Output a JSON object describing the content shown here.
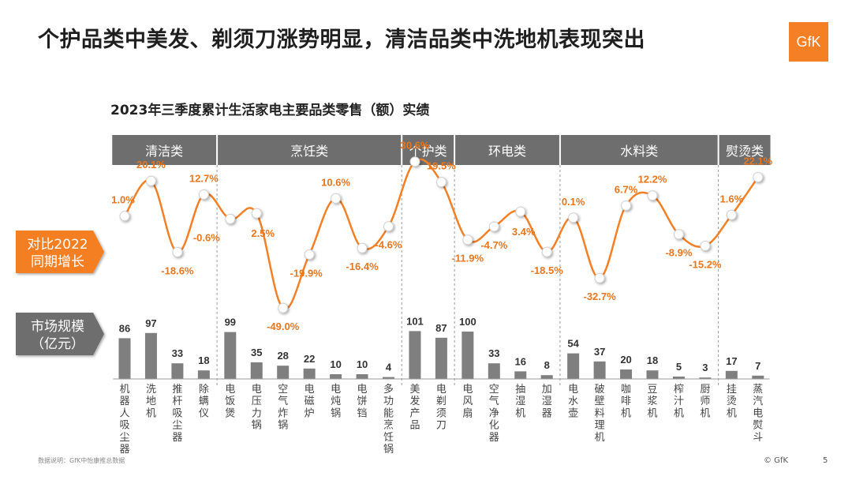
{
  "slide": {
    "headline": "个护品类中美发、剃须刀涨势明显，清洁品类中洗地机表现突出",
    "subtitle": "2023年三季度累计生活家电主要品类零售（额）实绩",
    "logo_text": "GfK",
    "source_note": "数据说明：GfK中怡康推总数据",
    "copyright": "© GfK",
    "page_number": "5"
  },
  "colors": {
    "accent": "#F47F24",
    "band": "#6E6E6E",
    "bar": "#7F7F7F",
    "text_orange": "#E8761E"
  },
  "chart_data": {
    "type": "line+bar",
    "title": "2023年三季度累计生活家电主要品类零售（额）实绩",
    "groups": [
      {
        "name": "清洁类",
        "count": 4
      },
      {
        "name": "烹饪类",
        "count": 7
      },
      {
        "name": "个护类",
        "count": 2
      },
      {
        "name": "环电类",
        "count": 4
      },
      {
        "name": "水料类",
        "count": 6
      },
      {
        "name": "熨烫类",
        "count": 2
      }
    ],
    "categories": [
      "机器人吸尘器",
      "洗地机",
      "推杆吸尘器",
      "除螨仪",
      "电饭煲",
      "电压力锅",
      "空气炸锅",
      "电磁炉",
      "电炖锅",
      "电饼铛",
      "多功能烹饪锅",
      "美发产品",
      "电剃须刀",
      "电风扇",
      "空气净化器",
      "抽湿机",
      "加湿器",
      "电水壶",
      "破壁料理机",
      "咖啡机",
      "豆浆机",
      "榨汁机",
      "厨师机",
      "挂烫机",
      "蒸汽电熨斗"
    ],
    "growth_label": "对比2022\n同期增长",
    "market_label": "市场规模\n（亿元）",
    "growth": [
      1.0,
      20.1,
      -18.6,
      12.7,
      -0.6,
      2.5,
      -49.0,
      -19.9,
      10.6,
      -16.4,
      -4.6,
      30.6,
      19.5,
      -11.9,
      -4.7,
      3.4,
      -18.5,
      0.1,
      -32.7,
      6.7,
      12.2,
      -8.9,
      -15.2,
      1.6,
      22.1
    ],
    "growth_labels": [
      "1.0%",
      "20.1%",
      "-18.6%",
      "12.7%",
      "-0.6%",
      "2.5%",
      "-49.0%",
      "-19.9%",
      "10.6%",
      "-16.4%",
      "-4.6%",
      "30.6%",
      "19.5%",
      "-11.9%",
      "-4.7%",
      "3.4%",
      "-18.5%",
      "0.1%",
      "-32.7%",
      "6.7%",
      "12.2%",
      "-8.9%",
      "-15.2%",
      "1.6%",
      "22.1%"
    ],
    "market_size": [
      86,
      97,
      33,
      18,
      99,
      35,
      28,
      22,
      10,
      10,
      4,
      101,
      87,
      100,
      33,
      16,
      8,
      54,
      37,
      20,
      18,
      5,
      3,
      17,
      7
    ]
  }
}
